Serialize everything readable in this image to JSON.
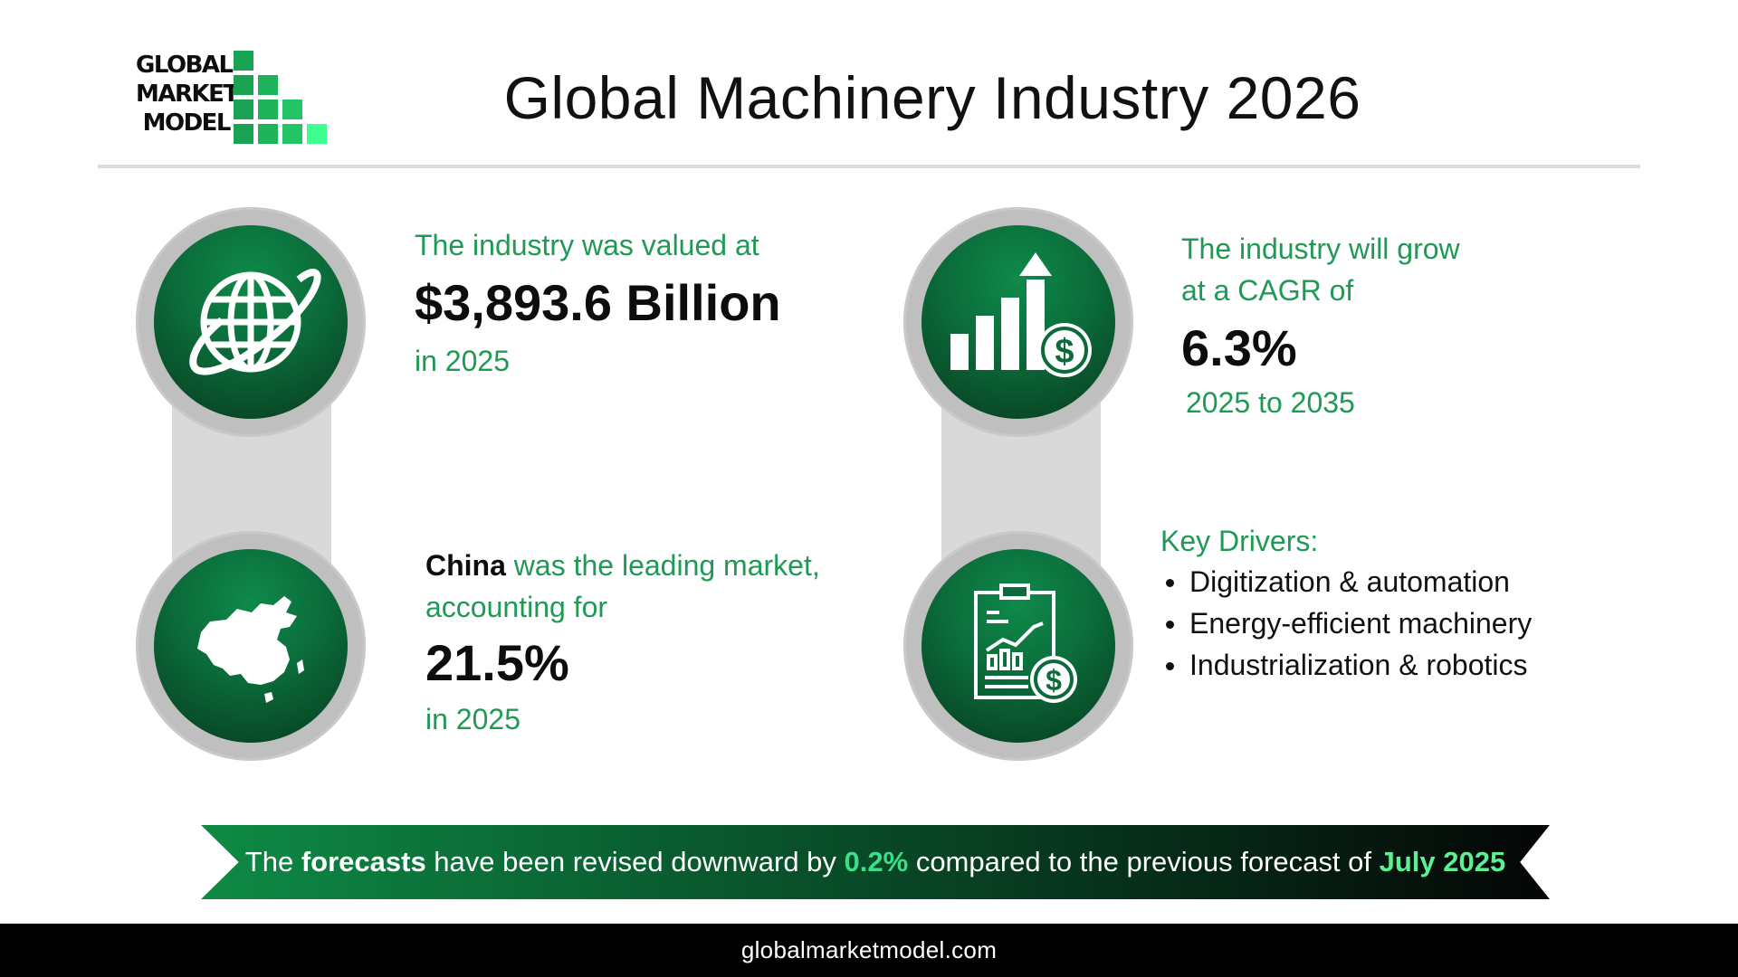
{
  "logo": {
    "lines": [
      "GLOBAL",
      "MARKET",
      "MODEL"
    ],
    "brand_color": "#1fb35c",
    "accent_color": "#3dff8f"
  },
  "header": {
    "title": "Global Machinery Industry 2026"
  },
  "stats": {
    "valuation": {
      "intro": "The industry was valued at",
      "value": "$3,893.6 Billion",
      "year": "in 2025",
      "icon": "globe-orbit-icon"
    },
    "growth": {
      "intro_line1": "The industry will grow",
      "intro_line2": "at a CAGR of",
      "value": "6.3%",
      "period": "2025 to 2035",
      "icon": "growth-bars-dollar-icon"
    },
    "leader": {
      "country": "China",
      "intro_rest": "was the leading market,",
      "intro_line2": "accounting for",
      "value": "21.5%",
      "year": "in 2025",
      "icon": "china-map-icon"
    },
    "drivers": {
      "title": "Key Drivers:",
      "items": [
        "Digitization & automation",
        "Energy-efficient machinery",
        "Industrialization & robotics"
      ],
      "icon": "report-clipboard-dollar-icon"
    }
  },
  "banner": {
    "part1": "The ",
    "bold1": "forecasts",
    "part2": " have been revised downward by ",
    "highlight1": "0.2%",
    "part3": " compared to the previous forecast of ",
    "highlight2": "July 2025"
  },
  "footer": {
    "url": "globalmarketmodel.com"
  },
  "colors": {
    "accent_green": "#1f9a55",
    "circle_green_dark": "#07391f",
    "circle_green_light": "#0f8a4a",
    "ring_gray": "#bfbfbf",
    "connector_gray": "#d9d9d9"
  }
}
